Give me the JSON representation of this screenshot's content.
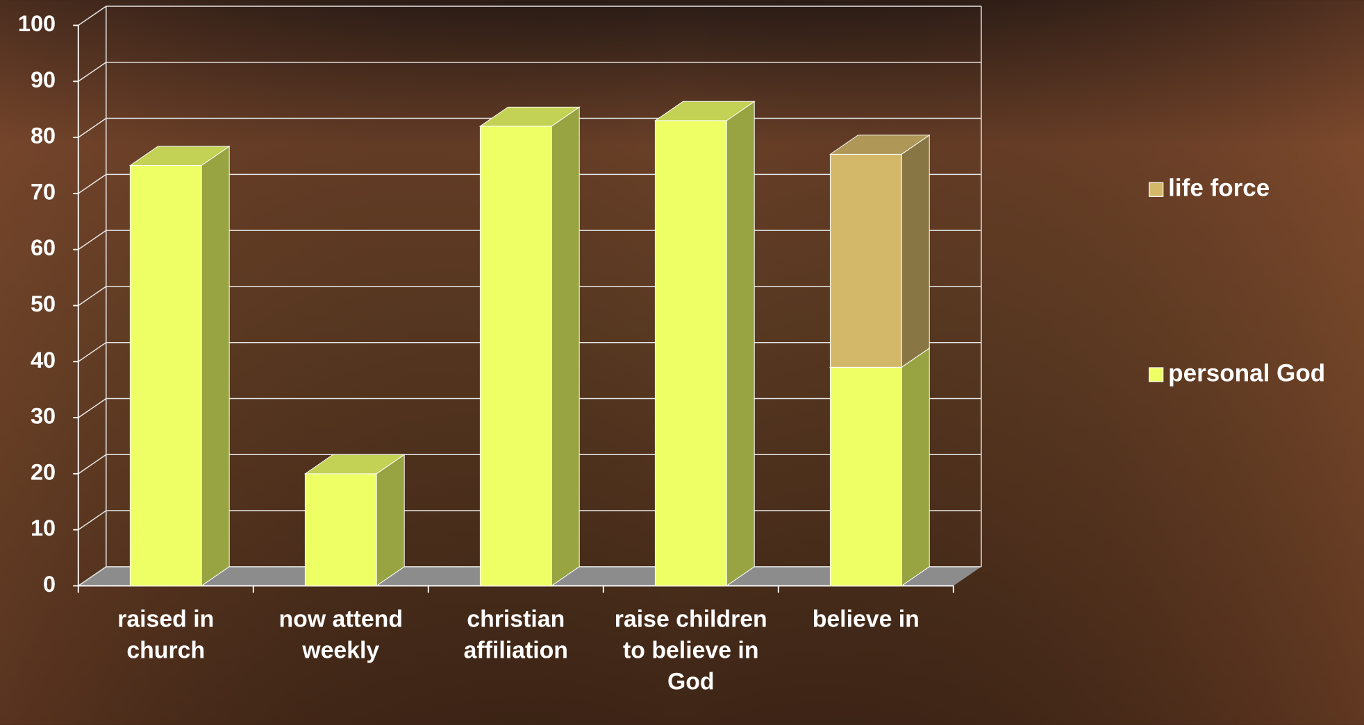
{
  "chart_data": {
    "type": "bar",
    "stacked": true,
    "categories": [
      "raised in church",
      "now attend weekly",
      "christian affiliation",
      "raise children to believe in God",
      "believe in"
    ],
    "series": [
      {
        "name": "personal God",
        "color": "#eeff66",
        "values": [
          75,
          20,
          82,
          83,
          39
        ]
      },
      {
        "name": "life force",
        "color": "#d4b86a",
        "values": [
          null,
          null,
          null,
          null,
          38
        ]
      }
    ],
    "ylim": [
      0,
      100
    ],
    "yticks": [
      0,
      10,
      20,
      30,
      40,
      50,
      60,
      70,
      80,
      90,
      100
    ],
    "grid": true,
    "legend": "right"
  }
}
